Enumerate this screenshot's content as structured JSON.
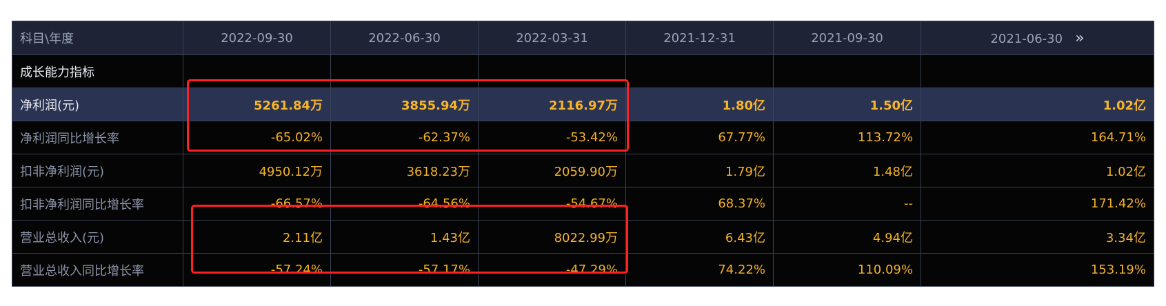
{
  "header": {
    "label": "科目\\年度",
    "columns": [
      "2022-09-30",
      "2022-06-30",
      "2022-03-31",
      "2021-12-31",
      "2021-09-30",
      "2021-06-30"
    ],
    "more_icon": "»"
  },
  "rows": [
    {
      "label": "成长能力指标",
      "values": [
        "",
        "",
        "",
        "",
        "",
        ""
      ]
    },
    {
      "label": "净利润(元)",
      "values": [
        "5261.84万",
        "3855.94万",
        "2116.97万",
        "1.80亿",
        "1.50亿",
        "1.02亿"
      ]
    },
    {
      "label": "净利润同比增长率",
      "values": [
        "-65.02%",
        "-62.37%",
        "-53.42%",
        "67.77%",
        "113.72%",
        "164.71%"
      ]
    },
    {
      "label": "扣非净利润(元)",
      "values": [
        "4950.12万",
        "3618.23万",
        "2059.90万",
        "1.79亿",
        "1.48亿",
        "1.02亿"
      ]
    },
    {
      "label": "扣非净利润同比增长率",
      "values": [
        "-66.57%",
        "-64.56%",
        "-54.67%",
        "68.37%",
        "--",
        "171.42%"
      ]
    },
    {
      "label": "营业总收入(元)",
      "values": [
        "2.11亿",
        "1.43亿",
        "8022.99万",
        "6.43亿",
        "4.94亿",
        "3.34亿"
      ]
    },
    {
      "label": "营业总收入同比增长率",
      "values": [
        "-57.24%",
        "-57.17%",
        "-47.29%",
        "74.22%",
        "110.09%",
        "153.19%"
      ]
    }
  ],
  "colors": {
    "value_text": "#f3b128",
    "label_text": "#8b93a8",
    "header_bg": "#1e2436",
    "highlight_bg": "#2a3352",
    "annotation_box": "#ff2020"
  }
}
